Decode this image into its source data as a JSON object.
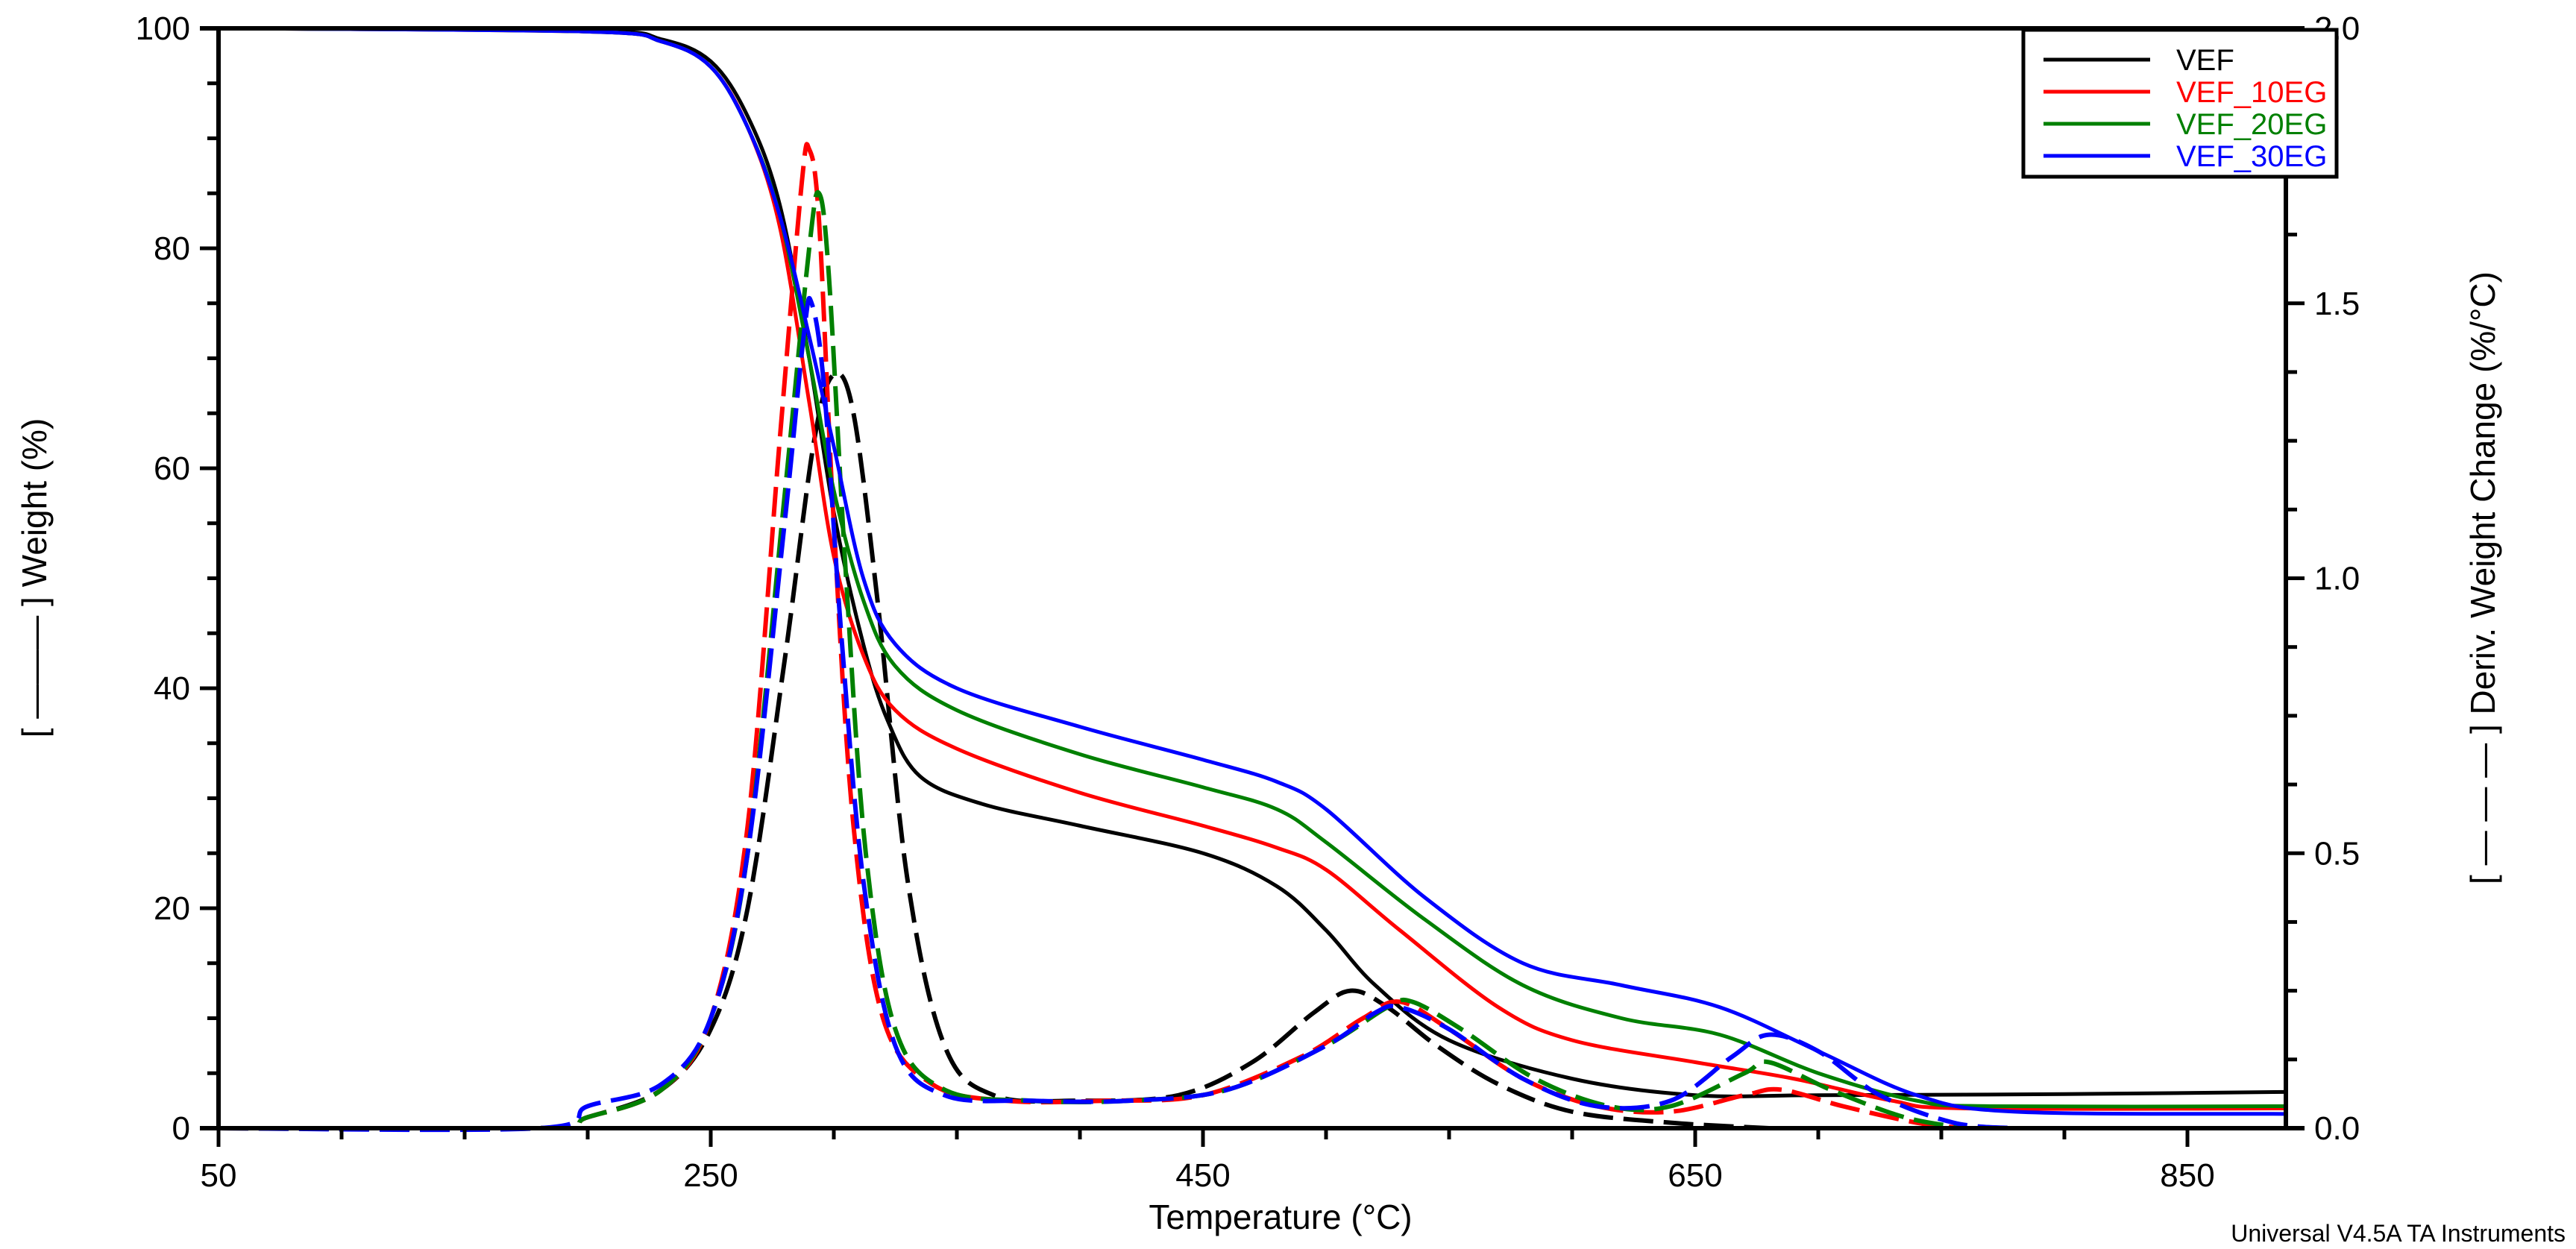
{
  "chart_data": {
    "type": "line",
    "title": "",
    "xlabel": "Temperature (°C)",
    "ylabel": "[ ——— ] Weight (%)",
    "y2label": "[ — — — ] Deriv. Weight Change (%/°C)",
    "footer": "Universal V4.5A TA Instruments",
    "xlim": [
      50,
      890
    ],
    "ylim": [
      0,
      100
    ],
    "y2lim": [
      0,
      2.0
    ],
    "xticks": [
      "50",
      "250",
      "450",
      "650",
      "850"
    ],
    "yticks": [
      "0",
      "20",
      "40",
      "60",
      "80",
      "100"
    ],
    "y2ticks": [
      "0.0",
      "0.5",
      "1.0",
      "1.5",
      "2.0"
    ],
    "grid": false,
    "legend_position": "top-right",
    "series": [
      {
        "name": "VEF",
        "color": "#000000",
        "weight": [
          [
            50,
            100
          ],
          [
            200,
            99.8
          ],
          [
            230,
            99
          ],
          [
            250,
            97
          ],
          [
            265,
            92
          ],
          [
            278,
            84
          ],
          [
            290,
            70
          ],
          [
            300,
            56
          ],
          [
            312,
            44
          ],
          [
            322,
            37
          ],
          [
            335,
            32
          ],
          [
            360,
            29.5
          ],
          [
            400,
            27.5
          ],
          [
            450,
            25
          ],
          [
            480,
            22
          ],
          [
            500,
            18
          ],
          [
            520,
            13
          ],
          [
            550,
            8
          ],
          [
            600,
            4.5
          ],
          [
            650,
            3
          ],
          [
            700,
            3
          ],
          [
            800,
            3.1
          ],
          [
            890,
            3.3
          ]
        ],
        "deriv": [
          [
            50,
            0
          ],
          [
            180,
            0
          ],
          [
            200,
            0.02
          ],
          [
            230,
            0.07
          ],
          [
            250,
            0.18
          ],
          [
            265,
            0.4
          ],
          [
            280,
            0.85
          ],
          [
            292,
            1.25
          ],
          [
            300,
            1.37
          ],
          [
            308,
            1.3
          ],
          [
            318,
            0.95
          ],
          [
            330,
            0.45
          ],
          [
            345,
            0.15
          ],
          [
            365,
            0.06
          ],
          [
            400,
            0.05
          ],
          [
            440,
            0.06
          ],
          [
            470,
            0.12
          ],
          [
            495,
            0.21
          ],
          [
            510,
            0.25
          ],
          [
            525,
            0.22
          ],
          [
            545,
            0.15
          ],
          [
            570,
            0.08
          ],
          [
            600,
            0.03
          ],
          [
            640,
            0.01
          ],
          [
            680,
            0
          ]
        ]
      },
      {
        "name": "VEF_10EG",
        "color": "#ff0000",
        "weight": [
          [
            50,
            100
          ],
          [
            200,
            99.7
          ],
          [
            230,
            98.8
          ],
          [
            250,
            96.5
          ],
          [
            265,
            91
          ],
          [
            278,
            82
          ],
          [
            290,
            66
          ],
          [
            300,
            52
          ],
          [
            312,
            43
          ],
          [
            325,
            38
          ],
          [
            350,
            34.5
          ],
          [
            400,
            30.5
          ],
          [
            450,
            27.5
          ],
          [
            480,
            25.5
          ],
          [
            500,
            23.5
          ],
          [
            530,
            18
          ],
          [
            570,
            11
          ],
          [
            600,
            8
          ],
          [
            650,
            6
          ],
          [
            690,
            4.5
          ],
          [
            730,
            2.5
          ],
          [
            760,
            1.8
          ],
          [
            890,
            1.8
          ]
        ],
        "deriv": [
          [
            50,
            0
          ],
          [
            180,
            0
          ],
          [
            200,
            0.02
          ],
          [
            230,
            0.07
          ],
          [
            250,
            0.2
          ],
          [
            265,
            0.55
          ],
          [
            278,
            1.25
          ],
          [
            287,
            1.72
          ],
          [
            290,
            1.78
          ],
          [
            294,
            1.65
          ],
          [
            300,
            1.1
          ],
          [
            308,
            0.55
          ],
          [
            320,
            0.2
          ],
          [
            340,
            0.08
          ],
          [
            370,
            0.05
          ],
          [
            410,
            0.05
          ],
          [
            450,
            0.06
          ],
          [
            490,
            0.13
          ],
          [
            515,
            0.2
          ],
          [
            530,
            0.23
          ],
          [
            550,
            0.18
          ],
          [
            580,
            0.09
          ],
          [
            610,
            0.04
          ],
          [
            640,
            0.03
          ],
          [
            670,
            0.06
          ],
          [
            685,
            0.07
          ],
          [
            710,
            0.04
          ],
          [
            740,
            0.01
          ],
          [
            760,
            0
          ]
        ]
      },
      {
        "name": "VEF_20EG",
        "color": "#008000",
        "weight": [
          [
            50,
            100
          ],
          [
            200,
            99.7
          ],
          [
            230,
            98.8
          ],
          [
            250,
            96.5
          ],
          [
            265,
            91
          ],
          [
            278,
            83
          ],
          [
            290,
            70
          ],
          [
            300,
            58
          ],
          [
            312,
            48
          ],
          [
            325,
            42
          ],
          [
            350,
            38
          ],
          [
            400,
            34
          ],
          [
            450,
            31
          ],
          [
            480,
            29
          ],
          [
            500,
            26
          ],
          [
            540,
            19
          ],
          [
            580,
            13
          ],
          [
            620,
            10
          ],
          [
            660,
            8.5
          ],
          [
            700,
            5
          ],
          [
            740,
            2.5
          ],
          [
            770,
            2
          ],
          [
            890,
            2
          ]
        ],
        "deriv": [
          [
            50,
            0
          ],
          [
            180,
            0
          ],
          [
            200,
            0.02
          ],
          [
            230,
            0.07
          ],
          [
            250,
            0.2
          ],
          [
            265,
            0.5
          ],
          [
            280,
            1.15
          ],
          [
            290,
            1.6
          ],
          [
            294,
            1.7
          ],
          [
            298,
            1.55
          ],
          [
            305,
            1.0
          ],
          [
            313,
            0.5
          ],
          [
            325,
            0.18
          ],
          [
            345,
            0.07
          ],
          [
            380,
            0.05
          ],
          [
            420,
            0.05
          ],
          [
            460,
            0.07
          ],
          [
            500,
            0.15
          ],
          [
            525,
            0.22
          ],
          [
            535,
            0.23
          ],
          [
            555,
            0.18
          ],
          [
            585,
            0.09
          ],
          [
            615,
            0.04
          ],
          [
            640,
            0.04
          ],
          [
            670,
            0.1
          ],
          [
            680,
            0.12
          ],
          [
            705,
            0.07
          ],
          [
            735,
            0.02
          ],
          [
            760,
            0
          ]
        ]
      },
      {
        "name": "VEF_30EG",
        "color": "#0000ff",
        "weight": [
          [
            50,
            100
          ],
          [
            200,
            99.7
          ],
          [
            230,
            98.8
          ],
          [
            250,
            96.5
          ],
          [
            265,
            91
          ],
          [
            278,
            83
          ],
          [
            290,
            72
          ],
          [
            300,
            62
          ],
          [
            312,
            50
          ],
          [
            325,
            44
          ],
          [
            350,
            40
          ],
          [
            400,
            36.5
          ],
          [
            450,
            33.5
          ],
          [
            480,
            31.5
          ],
          [
            500,
            29
          ],
          [
            540,
            21
          ],
          [
            580,
            15
          ],
          [
            620,
            13
          ],
          [
            660,
            11
          ],
          [
            700,
            7
          ],
          [
            740,
            3
          ],
          [
            780,
            1.5
          ],
          [
            890,
            1.3
          ]
        ],
        "deriv": [
          [
            50,
            0
          ],
          [
            180,
            0
          ],
          [
            200,
            0.04
          ],
          [
            230,
            0.08
          ],
          [
            250,
            0.2
          ],
          [
            265,
            0.5
          ],
          [
            280,
            1.1
          ],
          [
            288,
            1.45
          ],
          [
            291,
            1.5
          ],
          [
            296,
            1.35
          ],
          [
            303,
            0.9
          ],
          [
            312,
            0.45
          ],
          [
            325,
            0.15
          ],
          [
            345,
            0.06
          ],
          [
            380,
            0.05
          ],
          [
            420,
            0.05
          ],
          [
            460,
            0.07
          ],
          [
            500,
            0.15
          ],
          [
            520,
            0.21
          ],
          [
            530,
            0.22
          ],
          [
            550,
            0.18
          ],
          [
            580,
            0.09
          ],
          [
            610,
            0.04
          ],
          [
            640,
            0.05
          ],
          [
            665,
            0.13
          ],
          [
            680,
            0.17
          ],
          [
            700,
            0.14
          ],
          [
            725,
            0.06
          ],
          [
            755,
            0.01
          ],
          [
            780,
            0
          ]
        ]
      }
    ]
  }
}
